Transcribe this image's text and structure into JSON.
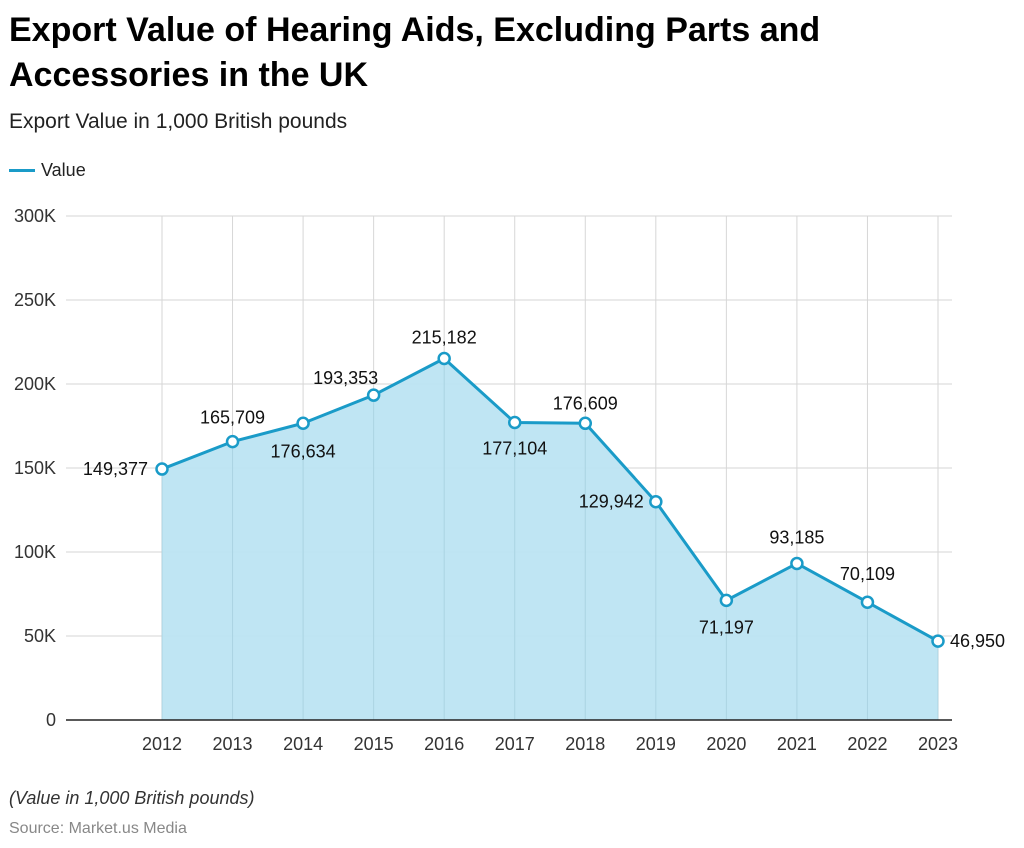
{
  "chart_data": {
    "type": "area",
    "title": "Export Value of Hearing Aids, Excluding Parts and Accessories in the UK",
    "subtitle": "Export Value in 1,000 British pounds",
    "legend": {
      "placement": "top-left",
      "entries": [
        "Value"
      ]
    },
    "categories": [
      "2012",
      "2013",
      "2014",
      "2015",
      "2016",
      "2017",
      "2018",
      "2019",
      "2020",
      "2021",
      "2022",
      "2023"
    ],
    "series": [
      {
        "name": "Value",
        "color": "#1a9bc8",
        "fill": "#bce4f2",
        "values": [
          149377,
          165709,
          176634,
          193353,
          215182,
          177104,
          176609,
          129942,
          71197,
          93185,
          70109,
          46950
        ],
        "labels": [
          "149,377",
          "165,709",
          "176,634",
          "193,353",
          "215,182",
          "177,104",
          "176,609",
          "129,942",
          "71,197",
          "93,185",
          "70,109",
          "46,950"
        ]
      }
    ],
    "ylim": [
      0,
      300000
    ],
    "yticks": [
      0,
      50000,
      100000,
      150000,
      200000,
      250000,
      300000
    ],
    "ytick_labels": [
      "0",
      "50K",
      "100K",
      "150K",
      "200K",
      "250K",
      "300K"
    ],
    "grid": true,
    "xlabel": "",
    "ylabel": ""
  },
  "footer": {
    "note": "(Value in 1,000 British pounds)",
    "source": "Source: Market.us Media"
  }
}
